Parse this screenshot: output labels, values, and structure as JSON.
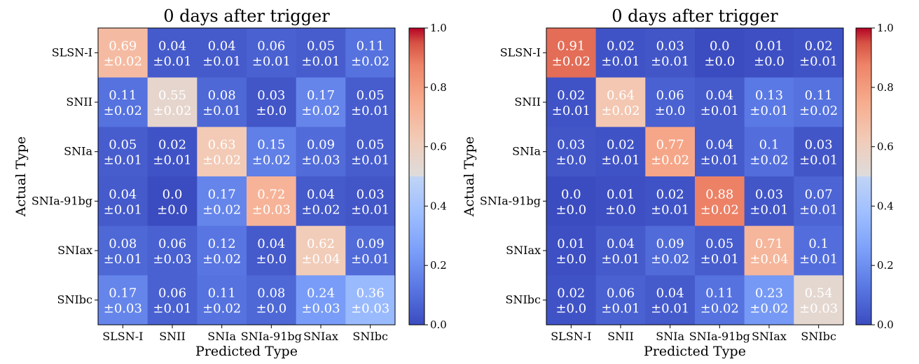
{
  "figure": {
    "colorbar_ticks": [
      "0.0",
      "0.2",
      "0.4",
      "0.6",
      "0.8",
      "1.0"
    ]
  },
  "chart_data": [
    {
      "type": "heatmap",
      "title": "0 days after trigger",
      "xlabel": "Predicted Type",
      "ylabel": "Actual Type",
      "categories": [
        "SLSN-I",
        "SNII",
        "SNIa",
        "SNIa-91bg",
        "SNIax",
        "SNIbc"
      ],
      "values": [
        [
          0.69,
          0.04,
          0.04,
          0.06,
          0.05,
          0.11
        ],
        [
          0.11,
          0.55,
          0.08,
          0.03,
          0.17,
          0.05
        ],
        [
          0.05,
          0.02,
          0.63,
          0.15,
          0.09,
          0.05
        ],
        [
          0.04,
          0.0,
          0.17,
          0.72,
          0.04,
          0.03
        ],
        [
          0.08,
          0.06,
          0.12,
          0.04,
          0.62,
          0.09
        ],
        [
          0.17,
          0.06,
          0.11,
          0.08,
          0.24,
          0.36
        ]
      ],
      "value_labels": [
        [
          "0.69",
          "0.04",
          "0.04",
          "0.06",
          "0.05",
          "0.11"
        ],
        [
          "0.11",
          "0.55",
          "0.08",
          "0.03",
          "0.17",
          "0.05"
        ],
        [
          "0.05",
          "0.02",
          "0.63",
          "0.15",
          "0.09",
          "0.05"
        ],
        [
          "0.04",
          "0.0",
          "0.17",
          "0.72",
          "0.04",
          "0.03"
        ],
        [
          "0.08",
          "0.06",
          "0.12",
          "0.04",
          "0.62",
          "0.09"
        ],
        [
          "0.17",
          "0.06",
          "0.11",
          "0.08",
          "0.24",
          "0.36"
        ]
      ],
      "error_labels": [
        [
          "±0.02",
          "±0.01",
          "±0.01",
          "±0.01",
          "±0.01",
          "±0.02"
        ],
        [
          "±0.02",
          "±0.02",
          "±0.01",
          "±0.0",
          "±0.02",
          "±0.01"
        ],
        [
          "±0.01",
          "±0.01",
          "±0.02",
          "±0.02",
          "±0.03",
          "±0.01"
        ],
        [
          "±0.01",
          "±0.0",
          "±0.02",
          "±0.03",
          "±0.02",
          "±0.01"
        ],
        [
          "±0.01",
          "±0.03",
          "±0.02",
          "±0.0",
          "±0.04",
          "±0.01"
        ],
        [
          "±0.03",
          "±0.01",
          "±0.02",
          "±0.0",
          "±0.03",
          "±0.03"
        ]
      ],
      "colorbar_range": [
        0.0,
        1.0
      ],
      "colormap": "coolwarm"
    },
    {
      "type": "heatmap",
      "title": "0 days after trigger",
      "xlabel": "Predicted Type",
      "ylabel": "Actual Type",
      "categories": [
        "SLSN-I",
        "SNII",
        "SNIa",
        "SNIa-91bg",
        "SNIax",
        "SNIbc"
      ],
      "values": [
        [
          0.91,
          0.02,
          0.03,
          0.0,
          0.01,
          0.02
        ],
        [
          0.02,
          0.64,
          0.06,
          0.04,
          0.13,
          0.11
        ],
        [
          0.03,
          0.02,
          0.77,
          0.04,
          0.1,
          0.03
        ],
        [
          0.0,
          0.01,
          0.02,
          0.88,
          0.03,
          0.07
        ],
        [
          0.01,
          0.04,
          0.09,
          0.05,
          0.71,
          0.1
        ],
        [
          0.02,
          0.06,
          0.04,
          0.11,
          0.23,
          0.54
        ]
      ],
      "value_labels": [
        [
          "0.91",
          "0.02",
          "0.03",
          "0.0",
          "0.01",
          "0.02"
        ],
        [
          "0.02",
          "0.64",
          "0.06",
          "0.04",
          "0.13",
          "0.11"
        ],
        [
          "0.03",
          "0.02",
          "0.77",
          "0.04",
          "0.1",
          "0.03"
        ],
        [
          "0.0",
          "0.01",
          "0.02",
          "0.88",
          "0.03",
          "0.07"
        ],
        [
          "0.01",
          "0.04",
          "0.09",
          "0.05",
          "0.71",
          "0.1"
        ],
        [
          "0.02",
          "0.06",
          "0.04",
          "0.11",
          "0.23",
          "0.54"
        ]
      ],
      "error_labels": [
        [
          "±0.02",
          "±0.01",
          "±0.01",
          "±0.0",
          "±0.0",
          "±0.01"
        ],
        [
          "±0.01",
          "±0.02",
          "±0.0",
          "±0.01",
          "±0.01",
          "±0.02"
        ],
        [
          "±0.0",
          "±0.01",
          "±0.02",
          "±0.01",
          "±0.02",
          "±0.01"
        ],
        [
          "±0.0",
          "±0.0",
          "±0.01",
          "±0.02",
          "±0.01",
          "±0.01"
        ],
        [
          "±0.0",
          "±0.01",
          "±0.02",
          "±0.01",
          "±0.04",
          "±0.01"
        ],
        [
          "±0.0",
          "±0.01",
          "±0.01",
          "±0.02",
          "±0.02",
          "±0.03"
        ]
      ],
      "colorbar_range": [
        0.0,
        1.0
      ],
      "colormap": "coolwarm"
    }
  ]
}
